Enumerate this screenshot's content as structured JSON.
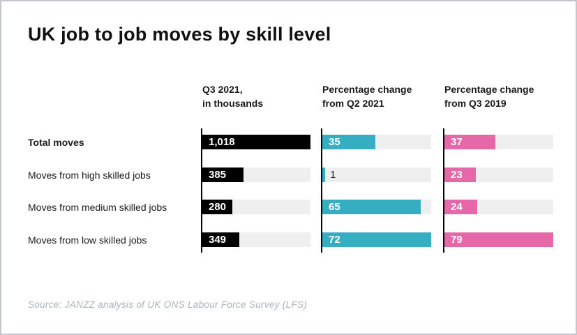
{
  "title": "UK job to job moves by skill level",
  "source": "Source: JANZZ analysis of UK ONS Labour Force Survey (LFS)",
  "colors": {
    "bar_q3_2021": "#000000",
    "bar_change_q2_2021": "#36aec1",
    "bar_change_q3_2019": "#e768a9",
    "bar_track": "#efeff0",
    "axis_line": "#000000",
    "title_text": "#111111",
    "source_text": "#a9b3ba",
    "page_border": "#c4c8cc"
  },
  "chart_data": {
    "type": "bar",
    "orientation": "horizontal",
    "grid": false,
    "legend_position": "none",
    "title": "UK job to job moves by skill level",
    "categories": [
      "Total moves",
      "Moves from high skilled jobs",
      "Moves from medium skilled jobs",
      "Moves from low skilled jobs"
    ],
    "series": [
      {
        "name": "Q3 2021, in thousands",
        "name_lines": [
          "Q3 2021,",
          "in thousands"
        ],
        "values": [
          1018,
          385,
          280,
          349
        ],
        "value_labels": [
          "1,018",
          "385",
          "280",
          "349"
        ],
        "axis_max": 1018,
        "color": "#000000"
      },
      {
        "name": "Percentage change from Q2 2021",
        "name_lines": [
          "Percentage change",
          "from Q2 2021"
        ],
        "values": [
          35,
          1,
          65,
          72
        ],
        "value_labels": [
          "35",
          "1",
          "65",
          "72"
        ],
        "axis_max": 72,
        "color": "#36aec1"
      },
      {
        "name": "Percentage change from Q3 2019",
        "name_lines": [
          "Percentage change",
          "from Q3 2019"
        ],
        "values": [
          37,
          23,
          24,
          79
        ],
        "value_labels": [
          "37",
          "23",
          "24",
          "79"
        ],
        "axis_max": 79,
        "color": "#e768a9"
      }
    ]
  },
  "layout_note": "each column scaled so its largest value fills the track"
}
